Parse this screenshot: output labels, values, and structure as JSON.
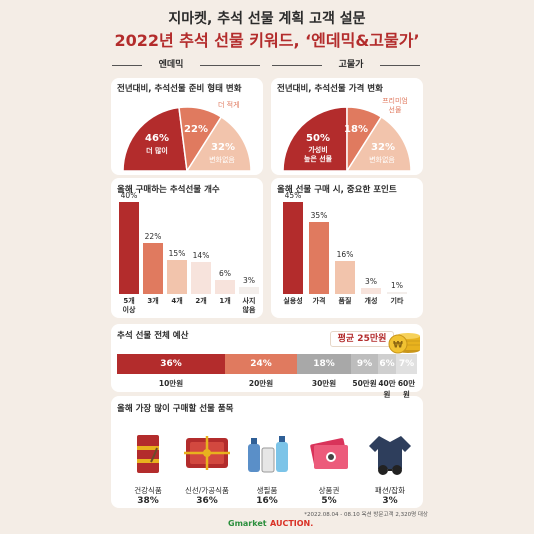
{
  "header": {
    "title": "지마켓, 추석 선물 계획 고객 설문",
    "subtitle": "2022년 추석 선물 키워드, ‘엔데믹&고물가’"
  },
  "sections": {
    "left": "엔데믹",
    "right": "고물가"
  },
  "colors": {
    "dark_red": "#b32c2c",
    "mid_red": "#e07a5f",
    "light_peach": "#f2c4ac",
    "pale_pink": "#f7e3dc",
    "gray": "#a8a8a8",
    "gold": "#e8b21e"
  },
  "chart_data": [
    {
      "type": "pie",
      "title": "전년대비, 추석선물 준비 형태 변화",
      "slices": [
        {
          "label": "더 많이",
          "value": 46
        },
        {
          "label": "더 적게",
          "value": 22
        },
        {
          "label": "변화없음",
          "value": 32
        }
      ],
      "display": [
        "46%",
        "22%",
        "32%"
      ]
    },
    {
      "type": "pie",
      "title": "전년대비, 추석선물 가격 변화",
      "slices": [
        {
          "label": "가성비 높은 선물",
          "value": 50
        },
        {
          "label": "프리미엄 선물",
          "value": 18
        },
        {
          "label": "변화없음",
          "value": 32
        }
      ],
      "display": [
        "50%",
        "18%",
        "32%"
      ]
    },
    {
      "type": "bar",
      "title": "올해 구매하는 추석선물 개수",
      "categories": [
        "5개 이상",
        "3개",
        "4개",
        "2개",
        "1개",
        "사지 않음"
      ],
      "category_lines": [
        [
          "5개",
          "이상"
        ],
        [
          "3개"
        ],
        [
          "4개"
        ],
        [
          "2개"
        ],
        [
          "1개"
        ],
        [
          "사지",
          "않음"
        ]
      ],
      "values": [
        40,
        22,
        15,
        14,
        6,
        3
      ],
      "value_labels": [
        "40%",
        "22%",
        "15%",
        "14%",
        "6%",
        "3%"
      ],
      "ylim": [
        0,
        40
      ]
    },
    {
      "type": "bar",
      "title": "올해 선물 구매 시, 중요한 포인트",
      "categories": [
        "실용성",
        "가격",
        "품질",
        "개성",
        "기타"
      ],
      "values": [
        45,
        35,
        16,
        3,
        1
      ],
      "value_labels": [
        "45%",
        "35%",
        "16%",
        "3%",
        "1%"
      ],
      "ylim": [
        0,
        45
      ]
    },
    {
      "type": "bar",
      "title": "추석 선물 전체 예산",
      "categories": [
        "10만원",
        "20만원",
        "30만원",
        "50만원",
        "40만원",
        "60만원"
      ],
      "values": [
        36,
        24,
        18,
        9,
        6,
        7
      ],
      "value_labels": [
        "36%",
        "24%",
        "18%",
        "9%",
        "6%",
        "7%"
      ],
      "annotation": "평균 25만원"
    },
    {
      "type": "bar",
      "title": "올해 가장 많이 구매할 선물 품목",
      "categories": [
        "건강식품",
        "신선/가공식품",
        "생필품",
        "상품권",
        "패션/잡화"
      ],
      "values": [
        38,
        36,
        16,
        5,
        3
      ],
      "value_labels": [
        "38%",
        "36%",
        "16%",
        "5%",
        "3%"
      ]
    }
  ],
  "pie_left_notes": {
    "less": "더 적게",
    "nochange": "변화없음",
    "more": "더 많이"
  },
  "pie_right_notes": {
    "premium": "프리미엄 선물",
    "nochange": "변화없음",
    "value": "가성비 높은 선물"
  },
  "icons": [
    "health-food-icon",
    "fresh-food-icon",
    "daily-goods-icon",
    "gift-card-icon",
    "fashion-icon",
    "coin-stack-icon"
  ],
  "footer": {
    "note": "*2022.08.04 - 08.10 옥션 방문고객 2,320명 대상",
    "brand_gmarket": "Gmarket",
    "brand_auction": "AUCTION."
  }
}
